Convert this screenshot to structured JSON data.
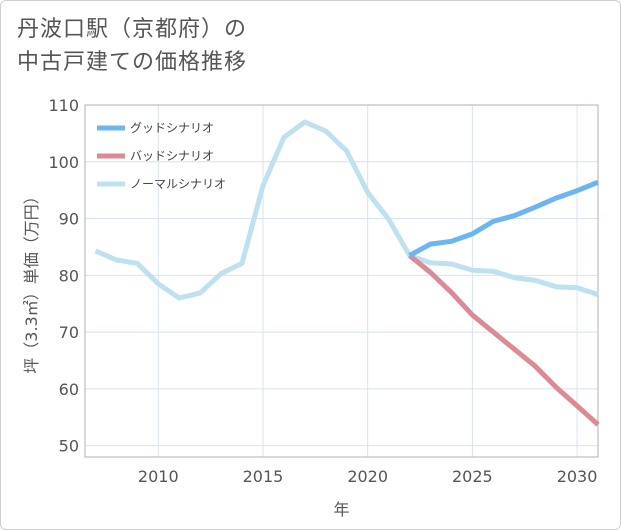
{
  "title": {
    "line1": "丹波口駅（京都府）の",
    "line2": "中古戸建ての価格推移"
  },
  "chart_data": {
    "type": "line",
    "xlabel": "年",
    "ylabel": "坪（3.3㎡）単価（万円）",
    "xlim": [
      2006.5,
      2031
    ],
    "ylim": [
      48,
      110
    ],
    "x_ticks": [
      2010,
      2015,
      2020,
      2025,
      2030
    ],
    "y_ticks": [
      50,
      60,
      70,
      80,
      90,
      100,
      110
    ],
    "grid": true,
    "legend_position": "top-left",
    "series": [
      {
        "name": "グッドシナリオ",
        "color": "#6ab6ee",
        "x": [
          2022,
          2023,
          2024,
          2025,
          2026,
          2027,
          2028,
          2029,
          2030,
          2031
        ],
        "y": [
          83.5,
          85.5,
          86.0,
          87.3,
          89.5,
          90.5,
          92.0,
          93.6,
          94.9,
          96.4
        ]
      },
      {
        "name": "バッドシナリオ",
        "color": "#dc8a93",
        "x": [
          2022,
          2023,
          2024,
          2025,
          2026,
          2027,
          2028,
          2029,
          2030,
          2031
        ],
        "y": [
          83.5,
          80.5,
          77.0,
          73.0,
          70.0,
          67.0,
          64.0,
          60.3,
          57.0,
          53.7
        ]
      },
      {
        "name": "ノーマルシナリオ",
        "color": "#bfe0ef",
        "x": [
          2007,
          2008,
          2009,
          2010,
          2011,
          2012,
          2013,
          2014,
          2015,
          2016,
          2017,
          2018,
          2019,
          2020,
          2021,
          2022,
          2023,
          2024,
          2025,
          2026,
          2027,
          2028,
          2029,
          2030,
          2031
        ],
        "y": [
          84.3,
          82.7,
          82.1,
          78.5,
          76.0,
          76.9,
          80.3,
          82.1,
          95.8,
          104.3,
          107.0,
          105.4,
          101.9,
          94.6,
          89.9,
          83.5,
          82.2,
          82.0,
          80.9,
          80.7,
          79.6,
          79.1,
          78.0,
          77.8,
          76.6
        ]
      }
    ]
  }
}
